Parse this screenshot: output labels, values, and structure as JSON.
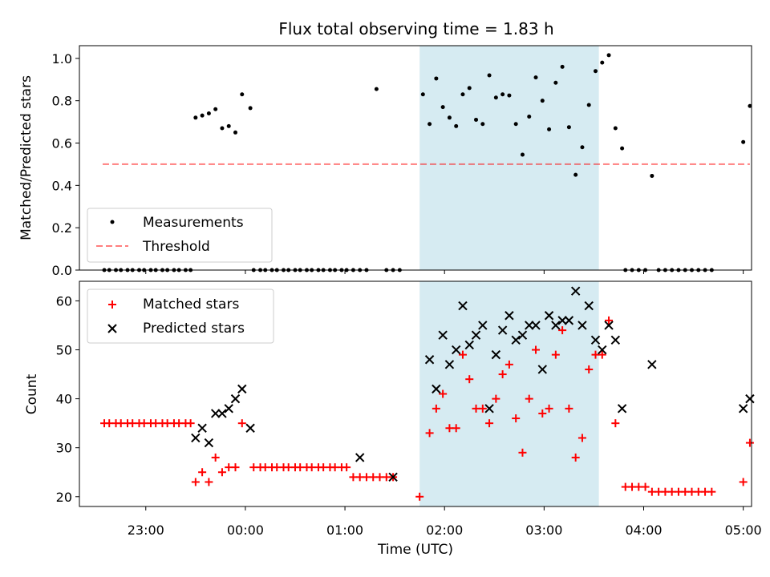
{
  "title": "Flux total observing time = 1.83 h",
  "colors": {
    "measurements": "#000000",
    "threshold": "#ff0000",
    "matched": "#ff0000",
    "predicted": "#000000",
    "highlight": "#add8e6"
  },
  "chart_data": [
    {
      "type": "scatter",
      "ylabel": "Matched/Predicted stars",
      "xlabel": "",
      "xlim": [
        "22:20",
        "05:05"
      ],
      "ylim": [
        0.0,
        1.06
      ],
      "yticks": [
        "0.0",
        "0.2",
        "0.4",
        "0.6",
        "0.8",
        "1.0"
      ],
      "xticks_unlabeled": [
        "23:00",
        "00:00",
        "01:00",
        "02:00",
        "03:00",
        "04:00",
        "05:00"
      ],
      "highlight_span": [
        "01:45",
        "03:33"
      ],
      "legend_position": "lower-left",
      "legend": [
        "Measurements",
        "Threshold"
      ],
      "threshold": {
        "name": "Threshold",
        "x": [
          "22:34",
          "05:04"
        ],
        "y": 0.5
      },
      "series": [
        {
          "name": "Measurements",
          "marker": "dot",
          "points": [
            [
              "22:35",
              0.0
            ],
            [
              "22:38",
              0.0
            ],
            [
              "22:42",
              0.0
            ],
            [
              "22:45",
              0.0
            ],
            [
              "22:49",
              0.0
            ],
            [
              "22:52",
              0.0
            ],
            [
              "22:56",
              0.0
            ],
            [
              "22:59",
              0.0
            ],
            [
              "23:03",
              0.0
            ],
            [
              "23:06",
              0.0
            ],
            [
              "23:10",
              0.0
            ],
            [
              "23:13",
              0.0
            ],
            [
              "23:17",
              0.0
            ],
            [
              "23:20",
              0.0
            ],
            [
              "23:24",
              0.0
            ],
            [
              "23:27",
              0.0
            ],
            [
              "23:30",
              0.72
            ],
            [
              "23:34",
              0.73
            ],
            [
              "23:38",
              0.74
            ],
            [
              "23:42",
              0.76
            ],
            [
              "23:46",
              0.67
            ],
            [
              "23:50",
              0.68
            ],
            [
              "23:54",
              0.65
            ],
            [
              "23:58",
              0.83
            ],
            [
              "00:03",
              0.765
            ],
            [
              "00:05",
              0.0
            ],
            [
              "00:09",
              0.0
            ],
            [
              "00:12",
              0.0
            ],
            [
              "00:16",
              0.0
            ],
            [
              "00:19",
              0.0
            ],
            [
              "00:23",
              0.0
            ],
            [
              "00:26",
              0.0
            ],
            [
              "00:30",
              0.0
            ],
            [
              "00:33",
              0.0
            ],
            [
              "00:37",
              0.0
            ],
            [
              "00:40",
              0.0
            ],
            [
              "00:44",
              0.0
            ],
            [
              "00:47",
              0.0
            ],
            [
              "00:51",
              0.0
            ],
            [
              "00:54",
              0.0
            ],
            [
              "00:58",
              0.0
            ],
            [
              "01:01",
              0.0
            ],
            [
              "01:05",
              0.0
            ],
            [
              "01:09",
              0.0
            ],
            [
              "01:13",
              0.0
            ],
            [
              "01:19",
              0.855
            ],
            [
              "01:25",
              0.0
            ],
            [
              "01:29",
              0.0
            ],
            [
              "01:33",
              0.0
            ],
            [
              "01:47",
              0.83
            ],
            [
              "01:51",
              0.69
            ],
            [
              "01:55",
              0.905
            ],
            [
              "01:59",
              0.77
            ],
            [
              "02:03",
              0.72
            ],
            [
              "02:07",
              0.68
            ],
            [
              "02:11",
              0.83
            ],
            [
              "02:15",
              0.86
            ],
            [
              "02:19",
              0.71
            ],
            [
              "02:23",
              0.69
            ],
            [
              "02:27",
              0.92
            ],
            [
              "02:31",
              0.815
            ],
            [
              "02:35",
              0.83
            ],
            [
              "02:39",
              0.825
            ],
            [
              "02:43",
              0.69
            ],
            [
              "02:47",
              0.545
            ],
            [
              "02:51",
              0.725
            ],
            [
              "02:55",
              0.91
            ],
            [
              "02:59",
              0.8
            ],
            [
              "03:03",
              0.665
            ],
            [
              "03:07",
              0.885
            ],
            [
              "03:11",
              0.96
            ],
            [
              "03:15",
              0.675
            ],
            [
              "03:19",
              0.45
            ],
            [
              "03:23",
              0.58
            ],
            [
              "03:27",
              0.78
            ],
            [
              "03:31",
              0.94
            ],
            [
              "03:35",
              0.98
            ],
            [
              "03:39",
              1.015
            ],
            [
              "03:43",
              0.67
            ],
            [
              "03:47",
              0.575
            ],
            [
              "03:49",
              0.0
            ],
            [
              "03:53",
              0.0
            ],
            [
              "03:57",
              0.0
            ],
            [
              "04:01",
              0.0
            ],
            [
              "04:05",
              0.445
            ],
            [
              "04:09",
              0.0
            ],
            [
              "04:13",
              0.0
            ],
            [
              "04:17",
              0.0
            ],
            [
              "04:21",
              0.0
            ],
            [
              "04:25",
              0.0
            ],
            [
              "04:29",
              0.0
            ],
            [
              "04:33",
              0.0
            ],
            [
              "04:37",
              0.0
            ],
            [
              "04:41",
              0.0
            ],
            [
              "05:00",
              0.605
            ],
            [
              "05:04",
              0.775
            ]
          ]
        }
      ]
    },
    {
      "type": "scatter",
      "ylabel": "Count",
      "xlabel": "Time (UTC)",
      "xlim": [
        "22:20",
        "05:05"
      ],
      "ylim": [
        18,
        64
      ],
      "yticks": [
        "20",
        "30",
        "40",
        "50",
        "60"
      ],
      "xticks": [
        "23:00",
        "00:00",
        "01:00",
        "02:00",
        "03:00",
        "04:00",
        "05:00"
      ],
      "highlight_span": [
        "01:45",
        "03:33"
      ],
      "legend_position": "upper-left",
      "legend": [
        "Matched stars",
        "Predicted stars"
      ],
      "series": [
        {
          "name": "Matched stars",
          "marker": "plus",
          "points": [
            [
              "22:35",
              35
            ],
            [
              "22:38",
              35
            ],
            [
              "22:42",
              35
            ],
            [
              "22:45",
              35
            ],
            [
              "22:49",
              35
            ],
            [
              "22:52",
              35
            ],
            [
              "22:56",
              35
            ],
            [
              "22:59",
              35
            ],
            [
              "23:03",
              35
            ],
            [
              "23:06",
              35
            ],
            [
              "23:10",
              35
            ],
            [
              "23:13",
              35
            ],
            [
              "23:17",
              35
            ],
            [
              "23:20",
              35
            ],
            [
              "23:24",
              35
            ],
            [
              "23:27",
              35
            ],
            [
              "23:30",
              23
            ],
            [
              "23:34",
              25
            ],
            [
              "23:38",
              23
            ],
            [
              "23:42",
              28
            ],
            [
              "23:46",
              25
            ],
            [
              "23:50",
              26
            ],
            [
              "23:54",
              26
            ],
            [
              "23:58",
              35
            ],
            [
              "00:05",
              26
            ],
            [
              "00:09",
              26
            ],
            [
              "00:12",
              26
            ],
            [
              "00:16",
              26
            ],
            [
              "00:19",
              26
            ],
            [
              "00:23",
              26
            ],
            [
              "00:26",
              26
            ],
            [
              "00:30",
              26
            ],
            [
              "00:33",
              26
            ],
            [
              "00:37",
              26
            ],
            [
              "00:40",
              26
            ],
            [
              "00:44",
              26
            ],
            [
              "00:47",
              26
            ],
            [
              "00:51",
              26
            ],
            [
              "00:54",
              26
            ],
            [
              "00:58",
              26
            ],
            [
              "01:01",
              26
            ],
            [
              "01:05",
              24
            ],
            [
              "01:09",
              24
            ],
            [
              "01:13",
              24
            ],
            [
              "01:17",
              24
            ],
            [
              "01:21",
              24
            ],
            [
              "01:25",
              24
            ],
            [
              "01:29",
              24
            ],
            [
              "01:45",
              20
            ],
            [
              "01:51",
              33
            ],
            [
              "01:55",
              38
            ],
            [
              "01:59",
              41
            ],
            [
              "02:03",
              34
            ],
            [
              "02:07",
              34
            ],
            [
              "02:11",
              49
            ],
            [
              "02:15",
              44
            ],
            [
              "02:19",
              38
            ],
            [
              "02:23",
              38
            ],
            [
              "02:27",
              35
            ],
            [
              "02:31",
              40
            ],
            [
              "02:35",
              45
            ],
            [
              "02:39",
              47
            ],
            [
              "02:43",
              36
            ],
            [
              "02:47",
              29
            ],
            [
              "02:51",
              40
            ],
            [
              "02:55",
              50
            ],
            [
              "02:59",
              37
            ],
            [
              "03:03",
              38
            ],
            [
              "03:07",
              49
            ],
            [
              "03:11",
              54
            ],
            [
              "03:15",
              38
            ],
            [
              "03:19",
              28
            ],
            [
              "03:23",
              32
            ],
            [
              "03:27",
              46
            ],
            [
              "03:31",
              49
            ],
            [
              "03:35",
              49
            ],
            [
              "03:39",
              56
            ],
            [
              "03:43",
              35
            ],
            [
              "03:49",
              22
            ],
            [
              "03:53",
              22
            ],
            [
              "03:57",
              22
            ],
            [
              "04:01",
              22
            ],
            [
              "04:05",
              21
            ],
            [
              "04:09",
              21
            ],
            [
              "04:13",
              21
            ],
            [
              "04:17",
              21
            ],
            [
              "04:21",
              21
            ],
            [
              "04:25",
              21
            ],
            [
              "04:29",
              21
            ],
            [
              "04:33",
              21
            ],
            [
              "04:37",
              21
            ],
            [
              "04:41",
              21
            ],
            [
              "05:00",
              23
            ],
            [
              "05:04",
              31
            ]
          ]
        },
        {
          "name": "Predicted stars",
          "marker": "x",
          "points": [
            [
              "23:30",
              32
            ],
            [
              "23:34",
              34
            ],
            [
              "23:38",
              31
            ],
            [
              "23:42",
              37
            ],
            [
              "23:46",
              37
            ],
            [
              "23:50",
              38
            ],
            [
              "23:54",
              40
            ],
            [
              "23:58",
              42
            ],
            [
              "00:03",
              34
            ],
            [
              "01:09",
              28
            ],
            [
              "01:29",
              24
            ],
            [
              "01:51",
              48
            ],
            [
              "01:55",
              42
            ],
            [
              "01:59",
              53
            ],
            [
              "02:03",
              47
            ],
            [
              "02:07",
              50
            ],
            [
              "02:11",
              59
            ],
            [
              "02:15",
              51
            ],
            [
              "02:19",
              53
            ],
            [
              "02:23",
              55
            ],
            [
              "02:27",
              38
            ],
            [
              "02:31",
              49
            ],
            [
              "02:35",
              54
            ],
            [
              "02:39",
              57
            ],
            [
              "02:43",
              52
            ],
            [
              "02:47",
              53
            ],
            [
              "02:51",
              55
            ],
            [
              "02:55",
              55
            ],
            [
              "02:59",
              46
            ],
            [
              "03:03",
              57
            ],
            [
              "03:07",
              55
            ],
            [
              "03:11",
              56
            ],
            [
              "03:15",
              56
            ],
            [
              "03:19",
              62
            ],
            [
              "03:23",
              55
            ],
            [
              "03:27",
              59
            ],
            [
              "03:31",
              52
            ],
            [
              "03:35",
              50
            ],
            [
              "03:39",
              55
            ],
            [
              "03:43",
              52
            ],
            [
              "03:47",
              38
            ],
            [
              "04:05",
              47
            ],
            [
              "05:00",
              38
            ],
            [
              "05:04",
              40
            ]
          ]
        }
      ]
    }
  ]
}
